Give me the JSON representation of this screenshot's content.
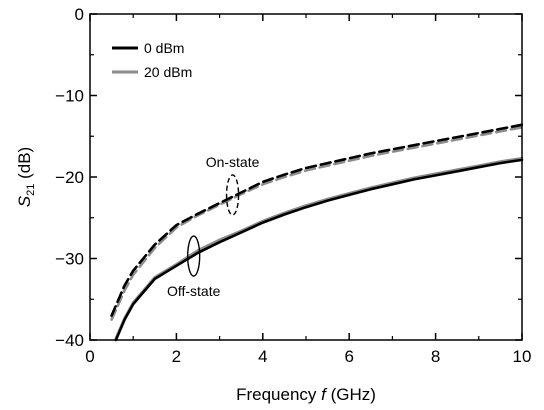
{
  "chart_data": {
    "type": "line",
    "xlabel_main": "Frequency ",
    "xlabel_var": "f",
    "xlabel_unit": " (GHz)",
    "ylabel_var": "S",
    "ylabel_sub": "21",
    "ylabel_unit": " (dB)",
    "xlim": [
      0,
      10
    ],
    "ylim": [
      -40,
      0
    ],
    "xticks": [
      0,
      2,
      4,
      6,
      8,
      10
    ],
    "yticks": [
      0,
      -10,
      -20,
      -30,
      -40
    ],
    "grid": false,
    "legend": {
      "placement": "top-left",
      "entries": [
        {
          "label": "0 dBm",
          "color": "#000000"
        },
        {
          "label": "20 dBm",
          "color": "#8c8c8c"
        }
      ]
    },
    "annotations": [
      {
        "text": "On-state",
        "x": 3.3,
        "y": -22.2
      },
      {
        "text": "Off-state",
        "x": 2.4,
        "y": -29.7
      }
    ],
    "series": [
      {
        "name": "0 dBm",
        "state": "On-state",
        "color": "#000000",
        "dash": true,
        "x": [
          0.5,
          0.8,
          1.0,
          1.5,
          2.0,
          2.5,
          3.0,
          3.5,
          4.0,
          4.5,
          5.0,
          5.5,
          6.0,
          6.5,
          7.0,
          7.5,
          8.0,
          8.5,
          9.0,
          9.5,
          10.0
        ],
        "y": [
          -37.0,
          -33.3,
          -31.5,
          -28.3,
          -25.9,
          -24.5,
          -23.2,
          -21.9,
          -20.6,
          -19.7,
          -18.9,
          -18.3,
          -17.7,
          -17.1,
          -16.6,
          -16.1,
          -15.6,
          -15.1,
          -14.6,
          -14.1,
          -13.6
        ]
      },
      {
        "name": "20 dBm",
        "state": "On-state",
        "color": "#8c8c8c",
        "dash": true,
        "x": [
          0.5,
          0.8,
          1.0,
          1.5,
          2.0,
          2.5,
          3.0,
          3.5,
          4.0,
          4.5,
          5.0,
          5.5,
          6.0,
          6.5,
          7.0,
          7.5,
          8.0,
          8.5,
          9.0,
          9.5,
          10.0
        ],
        "y": [
          -37.5,
          -33.9,
          -32.0,
          -28.7,
          -26.2,
          -24.7,
          -23.4,
          -22.1,
          -20.9,
          -20.0,
          -19.2,
          -18.6,
          -18.0,
          -17.4,
          -16.9,
          -16.4,
          -15.9,
          -15.4,
          -14.9,
          -14.4,
          -13.9
        ]
      },
      {
        "name": "0 dBm",
        "state": "Off-state",
        "color": "#000000",
        "dash": false,
        "x": [
          0.6,
          0.8,
          1.0,
          1.5,
          2.0,
          2.5,
          3.0,
          3.5,
          4.0,
          4.5,
          5.0,
          5.5,
          6.0,
          6.5,
          7.0,
          7.5,
          8.0,
          8.5,
          9.0,
          9.5,
          10.0
        ],
        "y": [
          -40.0,
          -37.5,
          -35.6,
          -32.5,
          -30.9,
          -29.3,
          -28.0,
          -26.8,
          -25.6,
          -24.6,
          -23.7,
          -22.9,
          -22.2,
          -21.5,
          -20.9,
          -20.3,
          -19.8,
          -19.3,
          -18.8,
          -18.3,
          -17.9
        ]
      },
      {
        "name": "20 dBm",
        "state": "Off-state",
        "color": "#8c8c8c",
        "dash": false,
        "x": [
          0.6,
          0.8,
          1.0,
          1.5,
          2.0,
          2.5,
          3.0,
          3.5,
          4.0,
          4.5,
          5.0,
          5.5,
          6.0,
          6.5,
          7.0,
          7.5,
          8.0,
          8.5,
          9.0,
          9.5,
          10.0
        ],
        "y": [
          -39.8,
          -37.3,
          -35.4,
          -32.3,
          -30.7,
          -29.0,
          -27.7,
          -26.6,
          -25.4,
          -24.4,
          -23.5,
          -22.7,
          -22.0,
          -21.3,
          -20.7,
          -20.1,
          -19.6,
          -19.1,
          -18.6,
          -18.1,
          -17.7
        ]
      }
    ]
  }
}
